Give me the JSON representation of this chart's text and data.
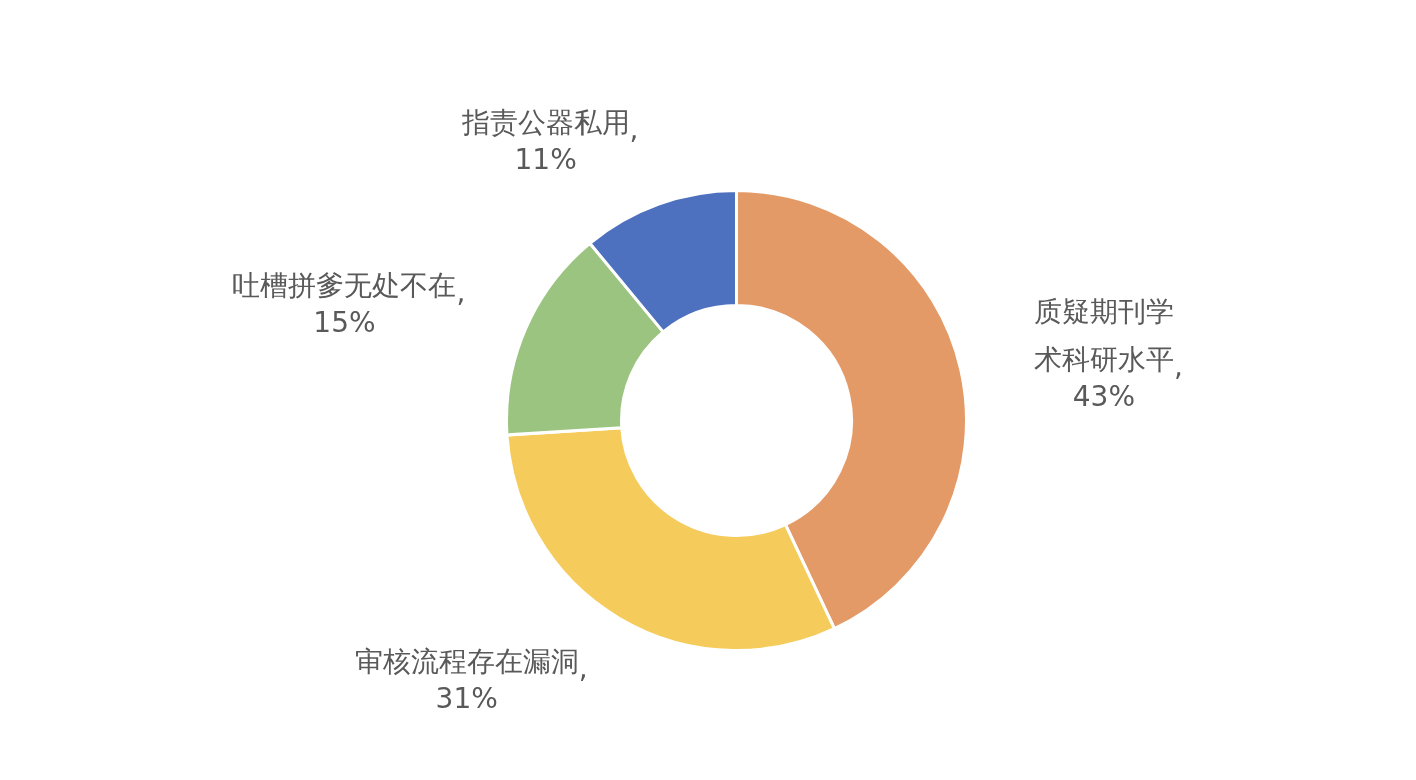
{
  "chart_data": {
    "type": "donut",
    "categories": [
      "质疑期刊学术科研水平",
      "审核流程存在漏洞",
      "吐槽拼爹无处不在",
      "指责公器私用"
    ],
    "values": [
      43,
      31,
      15,
      11
    ],
    "colors": [
      "#e49a66",
      "#f5cc5c",
      "#9cc481",
      "#4d71be"
    ],
    "value_labels": [
      ", 43%",
      ", 31%",
      ", 15%",
      ", 11%"
    ]
  }
}
